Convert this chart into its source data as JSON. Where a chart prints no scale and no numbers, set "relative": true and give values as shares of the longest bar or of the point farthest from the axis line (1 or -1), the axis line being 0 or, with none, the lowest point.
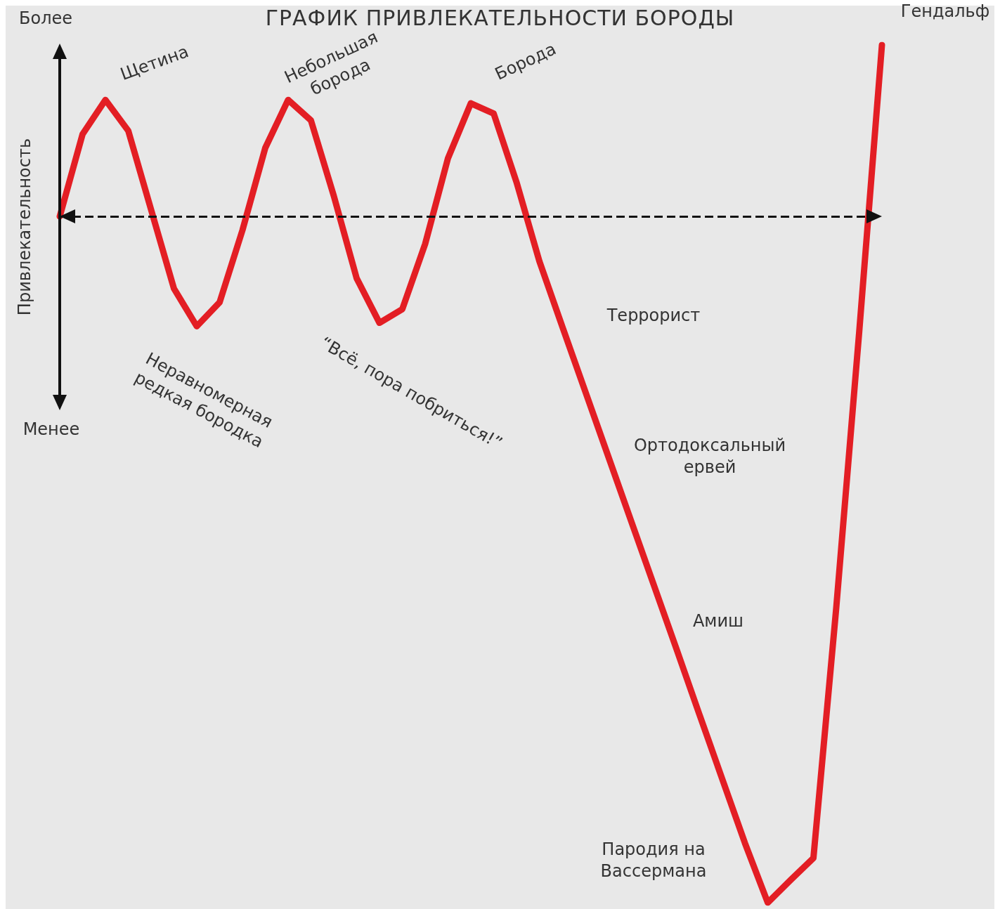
{
  "chart_data": {
    "type": "line",
    "title": "ГРАФИК ПРИВЛЕКАТЕЛЬНОСТИ БОРОДЫ",
    "ylabel": "Привлекательность",
    "relative": true,
    "line_style": "solid",
    "ref_lines": [
      {
        "axis": "y",
        "value": 0,
        "color": "#111111",
        "line_style": "dashed"
      }
    ],
    "categories": [
      null,
      null,
      null,
      null,
      null,
      null,
      null,
      null,
      null,
      null,
      null,
      null,
      null,
      null,
      null,
      null,
      null,
      null,
      null,
      null,
      null,
      null,
      null,
      null,
      null,
      null,
      null,
      null,
      null,
      null,
      null,
      null,
      null,
      null,
      null,
      null,
      null
    ],
    "series": [
      {
        "color": "#e31e24",
        "values": [
          0,
          0.12,
          0.17,
          0.125,
          0.01,
          -0.105,
          -0.16,
          -0.125,
          -0.02,
          0.1,
          0.17,
          0.14,
          0.03,
          -0.09,
          -0.155,
          -0.135,
          -0.04,
          0.085,
          0.165,
          0.15,
          0.05,
          -0.065,
          -0.16,
          -0.254,
          -0.348,
          -0.442,
          -0.536,
          -0.63,
          -0.725,
          -0.819,
          -0.913,
          -1,
          -0.967,
          -0.935,
          -0.57,
          -0.17,
          0.25
        ]
      }
    ],
    "annotations": [
      "Более",
      "Менее",
      "Щетина",
      "Небольшая\nборода",
      "Борода",
      "Неравномерная\nредкая бородка",
      "“Всё, пора побриться!”",
      "Террорист",
      "Ортодоксальный\nервей",
      "Амиш",
      "Пародия на\nВассермана",
      "Гендальф"
    ]
  }
}
